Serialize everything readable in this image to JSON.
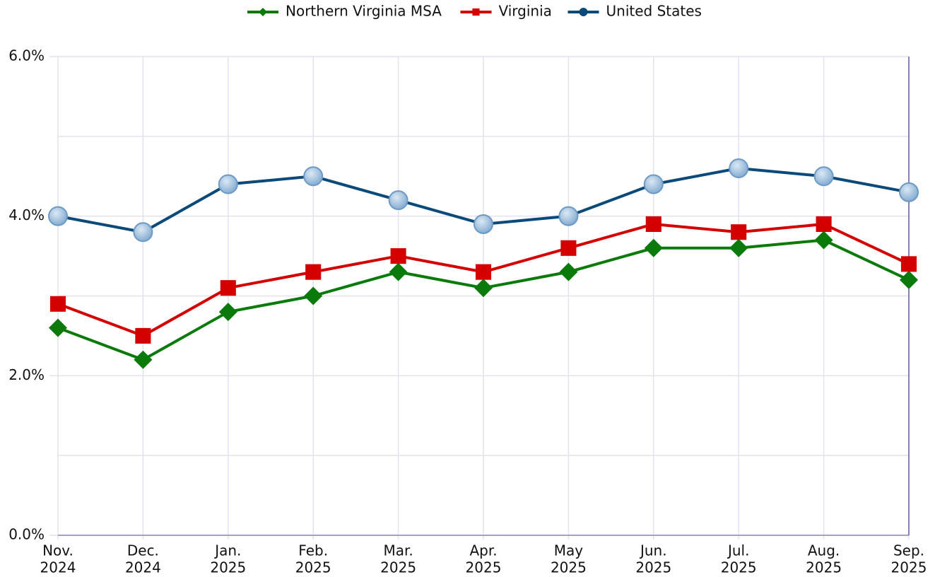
{
  "chart_data": {
    "type": "line",
    "categories": [
      [
        "Nov.",
        "2024"
      ],
      [
        "Dec.",
        "2024"
      ],
      [
        "Jan.",
        "2025"
      ],
      [
        "Feb.",
        "2025"
      ],
      [
        "Mar.",
        "2025"
      ],
      [
        "Apr.",
        "2025"
      ],
      [
        "May",
        "2025"
      ],
      [
        "Jun.",
        "2025"
      ],
      [
        "Jul.",
        "2025"
      ],
      [
        "Aug.",
        "2025"
      ],
      [
        "Sep.",
        "2025"
      ]
    ],
    "series": [
      {
        "name": "Northern Virginia MSA",
        "color": "#0a7a0a",
        "marker": "diamond",
        "values": [
          2.6,
          2.2,
          2.8,
          3.0,
          3.3,
          3.1,
          3.3,
          3.6,
          3.6,
          3.7,
          3.2
        ]
      },
      {
        "name": "Virginia",
        "color": "#d40000",
        "marker": "square",
        "values": [
          2.9,
          2.5,
          3.1,
          3.3,
          3.5,
          3.3,
          3.6,
          3.9,
          3.8,
          3.9,
          3.4
        ]
      },
      {
        "name": "United States",
        "color": "#0a4a7a",
        "marker": "circle",
        "values": [
          4.0,
          3.8,
          4.4,
          4.5,
          4.2,
          3.9,
          4.0,
          4.4,
          4.6,
          4.5,
          4.3
        ]
      }
    ],
    "ylim": [
      0,
      6
    ],
    "yticks": [
      {
        "value": 0,
        "label": "0.0%"
      },
      {
        "value": 2,
        "label": "2.0%"
      },
      {
        "value": 4,
        "label": "4.0%"
      },
      {
        "value": 6,
        "label": "6.0%"
      }
    ],
    "minor_yticks": [
      1,
      3,
      5
    ],
    "grid": true,
    "legend": "top"
  }
}
